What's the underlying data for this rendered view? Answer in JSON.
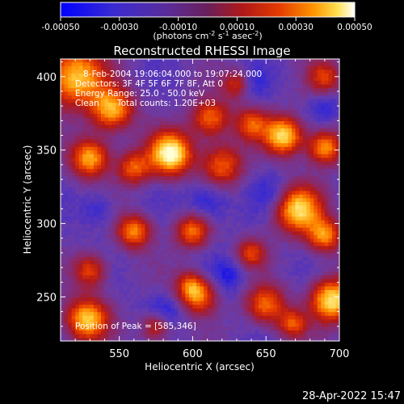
{
  "colorbar": {
    "ticks": [
      "-0.00050",
      "-0.00030",
      "-0.00010",
      "0.00010",
      "0.00030",
      "0.00050"
    ],
    "range": [
      -0.0005,
      0.0005
    ],
    "units_html": "(photons cm<tspan baseline-shift=\"super\" font-size=\"8\">-2</tspan> s<tspan baseline-shift=\"super\" font-size=\"8\">-1</tspan> asec<tspan baseline-shift=\"super\" font-size=\"8\">-2</tspan>)"
  },
  "chart_data": {
    "type": "heatmap",
    "title": "Reconstructed RHESSI Image",
    "xlabel": "Heliocentric X (arcsec)",
    "ylabel": "Heliocentric Y (arcsec)",
    "xlim": [
      510,
      700
    ],
    "ylim": [
      220,
      412
    ],
    "x_ticks": [
      550,
      600,
      650,
      700
    ],
    "y_ticks": [
      250,
      300,
      350,
      400
    ],
    "colormap": [
      "#0000ff",
      "#3b2bcf",
      "#6a3ca8",
      "#8a2a6a",
      "#b01818",
      "#e63a00",
      "#ff8a00",
      "#ffd040",
      "#ffffd8"
    ],
    "peak": [
      585,
      346
    ],
    "blobs": [
      {
        "x": 585,
        "y": 348,
        "s": 10,
        "a": 1.0
      },
      {
        "x": 520,
        "y": 400,
        "s": 14,
        "a": 0.8
      },
      {
        "x": 545,
        "y": 378,
        "s": 10,
        "a": 0.75
      },
      {
        "x": 530,
        "y": 345,
        "s": 9,
        "a": 0.75
      },
      {
        "x": 560,
        "y": 338,
        "s": 8,
        "a": 0.55
      },
      {
        "x": 612,
        "y": 372,
        "s": 9,
        "a": 0.6
      },
      {
        "x": 620,
        "y": 340,
        "s": 10,
        "a": 0.55
      },
      {
        "x": 640,
        "y": 368,
        "s": 8,
        "a": 0.5
      },
      {
        "x": 662,
        "y": 360,
        "s": 9,
        "a": 0.85
      },
      {
        "x": 690,
        "y": 352,
        "s": 8,
        "a": 0.7
      },
      {
        "x": 672,
        "y": 310,
        "s": 11,
        "a": 0.85
      },
      {
        "x": 690,
        "y": 292,
        "s": 8,
        "a": 0.65
      },
      {
        "x": 560,
        "y": 295,
        "s": 8,
        "a": 0.65
      },
      {
        "x": 600,
        "y": 295,
        "s": 8,
        "a": 0.6
      },
      {
        "x": 530,
        "y": 268,
        "s": 8,
        "a": 0.5
      },
      {
        "x": 528,
        "y": 235,
        "s": 10,
        "a": 0.8
      },
      {
        "x": 598,
        "y": 258,
        "s": 7,
        "a": 0.5
      },
      {
        "x": 605,
        "y": 250,
        "s": 8,
        "a": 0.55
      },
      {
        "x": 640,
        "y": 280,
        "s": 7,
        "a": 0.45
      },
      {
        "x": 650,
        "y": 245,
        "s": 9,
        "a": 0.6
      },
      {
        "x": 668,
        "y": 232,
        "s": 7,
        "a": 0.5
      },
      {
        "x": 695,
        "y": 248,
        "s": 10,
        "a": 0.9
      },
      {
        "x": 690,
        "y": 400,
        "s": 8,
        "a": 0.45
      },
      {
        "x": 630,
        "y": 395,
        "s": 7,
        "a": 0.45
      },
      {
        "x": 575,
        "y": 230,
        "s": 7,
        "a": 0.45
      }
    ],
    "cold_spots": [
      {
        "x": 610,
        "y": 315,
        "s": 10,
        "a": 0.6
      },
      {
        "x": 655,
        "y": 320,
        "s": 9,
        "a": 0.5
      },
      {
        "x": 535,
        "y": 310,
        "s": 8,
        "a": 0.45
      },
      {
        "x": 580,
        "y": 240,
        "s": 8,
        "a": 0.55
      },
      {
        "x": 640,
        "y": 395,
        "s": 8,
        "a": 0.45
      },
      {
        "x": 690,
        "y": 380,
        "s": 7,
        "a": 0.45
      },
      {
        "x": 625,
        "y": 265,
        "s": 8,
        "a": 0.5
      }
    ]
  },
  "annotations": {
    "time_range": "8-Feb-2004 19:06:04.000 to 19:07:24.000",
    "detectors": "Detectors: 3F 4F 5F 6F 7F 8F, Att 0",
    "energy": "Energy Range: 25.0 - 50.0 keV",
    "method": "Clean",
    "counts": "Total counts: 1.20E+03",
    "peak": "Position of Peak = [585,346]"
  },
  "timestamp": "28-Apr-2022 15:47"
}
